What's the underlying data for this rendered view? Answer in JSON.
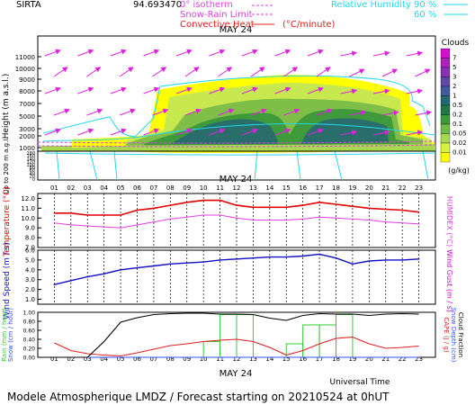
{
  "header": {
    "site": "SIRTA",
    "coord": "94.693470",
    "legend_iso": "0° isotherm",
    "legend_snow": "Snow-Rain Limit",
    "legend_conv": "Convective Heat",
    "legend_conv_unit": "(°C/minute)",
    "legend_rh": "Relative Humidity",
    "rh_90": "90 %",
    "rh_60": "60 %"
  },
  "footer": {
    "title": "Modele Atmospherique LMDZ / Forecast starting on 20210524 at 0hUT",
    "universal_time": "Universal Time"
  },
  "colors": {
    "temperature": "#e00000",
    "humidex": "#e040e0",
    "wind_speed": "#1010c0",
    "wind_gust": "#d000d0",
    "rain": "#33cc33",
    "snow": "#3050ff",
    "cape": "#e02020",
    "cloud_fraction": "#000000",
    "arrows": "#e020e0",
    "rh": "#22d8e8"
  },
  "chart_data": [
    {
      "type": "heatmap",
      "name": "clouds",
      "date_label": "MAY 24",
      "hours": [
        "01",
        "02",
        "03",
        "04",
        "05",
        "06",
        "07",
        "08",
        "09",
        "10",
        "11",
        "12",
        "13",
        "14",
        "15",
        "16",
        "17",
        "18",
        "19",
        "20",
        "21",
        "22",
        "23"
      ],
      "ylabel": "Height (m a.s.l.)",
      "ylabel_low": "Up to 200 m a.g.l.",
      "yticks_upper": [
        "11000",
        "10000",
        "9000",
        "8000",
        "7000",
        "5000",
        "3000",
        "2000",
        "1000"
      ],
      "yticks_lower": [
        "180",
        "160",
        "140",
        "120",
        "100",
        "80",
        "60",
        "40",
        "20",
        "0"
      ],
      "colorbar": {
        "title": "Clouds",
        "unit": "(g/kg)",
        "levels": [
          "0.01",
          "0.02",
          "0.05",
          "0.1",
          "0.2",
          "0.5",
          "1",
          "2",
          "3",
          "5",
          "7"
        ],
        "colors": [
          "#ffff00",
          "#d8f040",
          "#a8d850",
          "#70b848",
          "#3c9838",
          "#207848",
          "#206a70",
          "#405a9a",
          "#6048a8",
          "#8a30b8",
          "#b020c0",
          "#d010d0"
        ]
      }
    },
    {
      "type": "line",
      "name": "temperature",
      "date_label": "MAY 24",
      "ylabel": "Temperature (°C)",
      "ylabel_right": "HUMIDEX (°C)",
      "yticks": [
        "12.0",
        "11.0",
        "10.0",
        "9.0",
        "8.0",
        "7.0"
      ],
      "ylim": [
        7.0,
        12.5
      ],
      "x": [
        1,
        2,
        3,
        4,
        5,
        6,
        7,
        8,
        9,
        10,
        11,
        12,
        13,
        14,
        15,
        16,
        17,
        18,
        19,
        20,
        21,
        22,
        23
      ],
      "series": [
        {
          "name": "Temperature",
          "values": [
            10.5,
            10.5,
            10.3,
            10.3,
            10.3,
            10.8,
            11.0,
            11.3,
            11.6,
            11.8,
            11.8,
            11.3,
            11.1,
            11.1,
            11.1,
            11.3,
            11.6,
            11.4,
            11.2,
            11.0,
            10.9,
            10.8,
            10.6
          ]
        },
        {
          "name": "HUMIDEX",
          "values": [
            9.5,
            9.3,
            9.2,
            9.1,
            9.0,
            9.3,
            9.6,
            9.9,
            10.1,
            10.3,
            10.3,
            10.0,
            9.8,
            9.8,
            9.8,
            9.9,
            10.1,
            10.0,
            9.9,
            9.8,
            9.6,
            9.5,
            9.4
          ]
        }
      ]
    },
    {
      "type": "line",
      "name": "wind",
      "ylabel": "Wind Speed (m / s)",
      "ylabel_right": "Wind Gust (m / s)",
      "yticks": [
        "6.0",
        "5.0",
        "4.0",
        "3.0",
        "2.0",
        "1.0"
      ],
      "ylim": [
        0.5,
        6.0
      ],
      "x": [
        1,
        2,
        3,
        4,
        5,
        6,
        7,
        8,
        9,
        10,
        11,
        12,
        13,
        14,
        15,
        16,
        17,
        18,
        19,
        20,
        21,
        22,
        23
      ],
      "series": [
        {
          "name": "Wind Speed",
          "values": [
            2.5,
            2.9,
            3.3,
            3.6,
            4.0,
            4.2,
            4.4,
            4.6,
            4.7,
            4.8,
            5.0,
            5.1,
            5.2,
            5.3,
            5.3,
            5.4,
            5.6,
            5.2,
            4.6,
            4.9,
            5.0,
            5.0,
            5.1
          ]
        }
      ]
    },
    {
      "type": "line",
      "name": "precip",
      "date_label": "MAY 24",
      "ylabel": "Rain (mm / hour)",
      "ylabel2": "Snow (cm / hour)",
      "ylabel_right": "CAPE (J / g)",
      "ylabel_right2": "Snow Depth (cm)",
      "ylabel_right3": "Cloud Fraction",
      "yticks": [
        "1.00",
        "0.80",
        "0.60",
        "0.40",
        "0.20",
        "0.00"
      ],
      "ylim": [
        0,
        1.0
      ],
      "xlabel": "Universal Time",
      "x": [
        1,
        2,
        3,
        4,
        5,
        6,
        7,
        8,
        9,
        10,
        11,
        12,
        13,
        14,
        15,
        16,
        17,
        18,
        19,
        20,
        21,
        22,
        23
      ],
      "series": [
        {
          "name": "Cloud Fraction",
          "values": [
            0.0,
            0.0,
            0.0,
            0.35,
            0.78,
            0.88,
            0.95,
            0.97,
            0.98,
            0.98,
            0.96,
            0.96,
            0.95,
            0.87,
            0.82,
            0.93,
            0.97,
            0.96,
            0.96,
            0.93,
            0.96,
            0.97,
            0.96
          ]
        },
        {
          "name": "CAPE",
          "values": [
            0.32,
            0.15,
            0.08,
            0.05,
            0.03,
            0.1,
            0.18,
            0.26,
            0.3,
            0.35,
            0.38,
            0.4,
            0.35,
            0.22,
            0.05,
            0.15,
            0.3,
            0.42,
            0.45,
            0.3,
            0.2,
            0.22,
            0.25
          ]
        },
        {
          "name": "Rain",
          "values": [
            0,
            0,
            0,
            0,
            0,
            0,
            0,
            0,
            0,
            0,
            0.35,
            0.95,
            0.95,
            0.0,
            0.0,
            0.3,
            0.72,
            0.72,
            0.95,
            0.0,
            0.0,
            0.0,
            0.0
          ]
        },
        {
          "name": "Snow",
          "values": [
            0,
            0,
            0,
            0,
            0,
            0,
            0,
            0,
            0,
            0,
            0,
            0,
            0,
            0,
            0,
            0,
            0,
            0,
            0,
            0,
            0,
            0,
            0
          ]
        }
      ]
    }
  ]
}
